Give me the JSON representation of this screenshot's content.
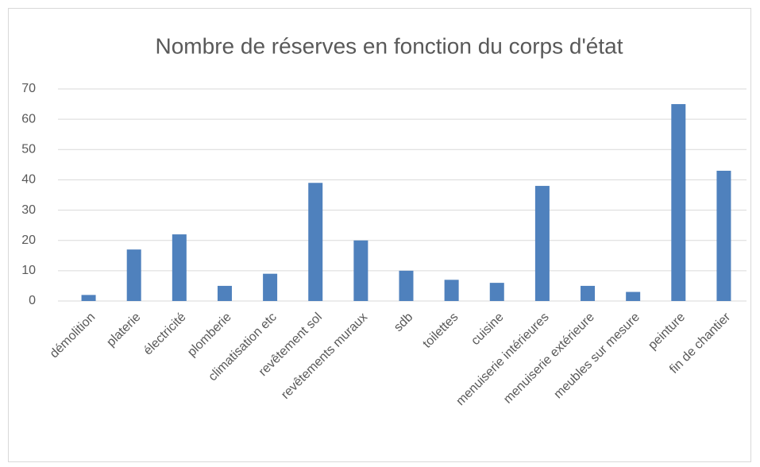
{
  "chart_data": {
    "type": "bar",
    "title": "Nombre de réserves en fonction du corps d'état",
    "categories": [
      "démolition",
      "platerie",
      "électricité",
      "plomberie",
      "climatisation etc",
      "revêtement sol",
      "revêtements muraux",
      "sdb",
      "toilettes",
      "cuisine",
      "menuiserie intérieures",
      "menuiserie extérieure",
      "meubles sur mesure",
      "peinture",
      "fin de chantier"
    ],
    "values": [
      2,
      17,
      22,
      5,
      9,
      39,
      20,
      10,
      7,
      6,
      38,
      5,
      3,
      65,
      43
    ],
    "color": "#4f81bd",
    "ylim": [
      0,
      70
    ],
    "yticks": [
      0,
      10,
      20,
      30,
      40,
      50,
      60,
      70
    ],
    "grid": true
  }
}
